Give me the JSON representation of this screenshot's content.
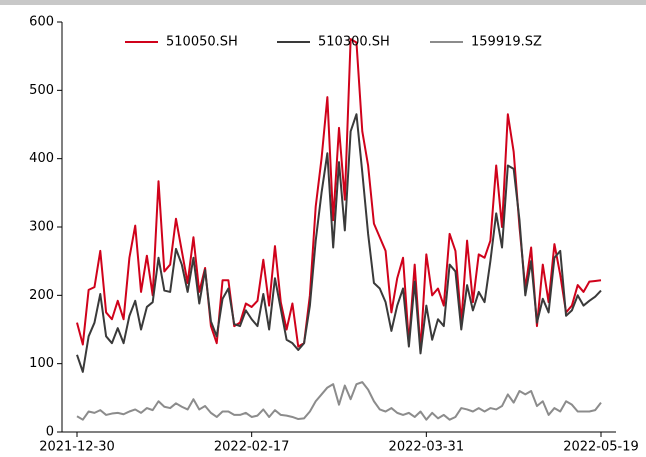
{
  "chart_data": {
    "type": "line",
    "categories": [
      "2021-12-30",
      null,
      null,
      null,
      null,
      null,
      null,
      null,
      null,
      null,
      null,
      null,
      null,
      null,
      null,
      null,
      null,
      null,
      null,
      null,
      null,
      null,
      null,
      null,
      null,
      null,
      null,
      null,
      null,
      null,
      "2022-02-17",
      null,
      null,
      null,
      null,
      null,
      null,
      null,
      null,
      null,
      null,
      null,
      null,
      null,
      null,
      null,
      null,
      null,
      null,
      null,
      null,
      null,
      null,
      null,
      null,
      null,
      null,
      null,
      null,
      null,
      "2022-03-31",
      null,
      null,
      null,
      null,
      null,
      null,
      null,
      null,
      null,
      null,
      null,
      null,
      null,
      null,
      null,
      null,
      null,
      null,
      null,
      null,
      null,
      null,
      null,
      null,
      null,
      null,
      null,
      null,
      null,
      "2022-05-19"
    ],
    "series": [
      {
        "name": "510050.SH",
        "color": "#d0021b",
        "values": [
          160,
          128,
          208,
          212,
          265,
          175,
          165,
          192,
          165,
          255,
          302,
          205,
          258,
          200,
          367,
          235,
          245,
          312,
          265,
          218,
          285,
          205,
          240,
          155,
          130,
          222,
          222,
          155,
          160,
          188,
          183,
          192,
          252,
          185,
          272,
          190,
          150,
          188,
          125,
          130,
          200,
          330,
          400,
          490,
          310,
          445,
          340,
          575,
          570,
          440,
          390,
          305,
          285,
          265,
          175,
          225,
          255,
          130,
          245,
          120,
          260,
          200,
          210,
          185,
          290,
          265,
          160,
          280,
          190,
          260,
          255,
          280,
          390,
          300,
          465,
          410,
          300,
          210,
          270,
          155,
          245,
          190,
          275,
          230,
          175,
          185,
          215,
          205,
          220,
          221,
          222
        ]
      },
      {
        "name": "510300.SH",
        "color": "#3a3a3a",
        "values": [
          113,
          88,
          140,
          160,
          202,
          140,
          130,
          152,
          130,
          170,
          192,
          150,
          183,
          190,
          255,
          207,
          205,
          268,
          245,
          205,
          255,
          188,
          237,
          162,
          140,
          195,
          210,
          158,
          155,
          178,
          165,
          155,
          202,
          150,
          225,
          180,
          135,
          130,
          120,
          130,
          185,
          280,
          350,
          408,
          270,
          395,
          295,
          440,
          465,
          380,
          290,
          218,
          210,
          190,
          148,
          185,
          210,
          125,
          220,
          115,
          185,
          135,
          165,
          155,
          245,
          235,
          150,
          215,
          178,
          205,
          190,
          250,
          320,
          270,
          390,
          385,
          310,
          200,
          250,
          160,
          195,
          175,
          255,
          265,
          170,
          178,
          200,
          185,
          192,
          198,
          207
        ]
      },
      {
        "name": "159919.SZ",
        "color": "#8c8c8c",
        "values": [
          23,
          18,
          30,
          28,
          32,
          25,
          27,
          28,
          26,
          30,
          33,
          28,
          35,
          32,
          45,
          37,
          35,
          42,
          37,
          33,
          48,
          33,
          38,
          28,
          22,
          30,
          30,
          25,
          25,
          28,
          22,
          24,
          33,
          22,
          32,
          25,
          24,
          22,
          19,
          20,
          30,
          45,
          55,
          65,
          70,
          40,
          68,
          48,
          70,
          73,
          62,
          45,
          33,
          30,
          35,
          28,
          25,
          28,
          22,
          30,
          18,
          28,
          20,
          25,
          18,
          22,
          35,
          33,
          30,
          35,
          30,
          35,
          33,
          38,
          55,
          43,
          60,
          55,
          60,
          38,
          45,
          25,
          35,
          30,
          45,
          40,
          30,
          30,
          30,
          32,
          43
        ]
      }
    ],
    "ylim": [
      0,
      600
    ],
    "yticks": [
      0,
      100,
      200,
      300,
      400,
      500,
      600
    ],
    "legend": "upper center",
    "grid": false
  }
}
